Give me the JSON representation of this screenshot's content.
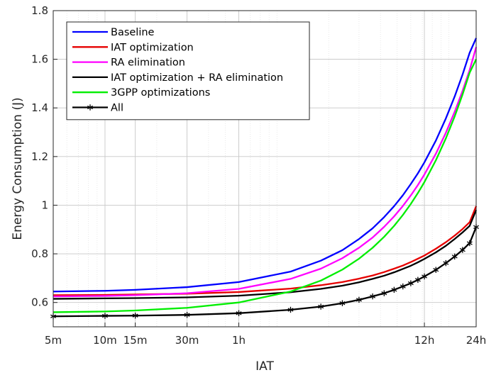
{
  "chart_data": {
    "type": "line",
    "xlabel": "IAT",
    "ylabel": "Energy Consumption (J)",
    "x_scale": "log",
    "x_unit": "minutes",
    "xlim": [
      5,
      1440
    ],
    "ylim": [
      0.5,
      1.8
    ],
    "x_ticks": [
      {
        "value": 5,
        "label": "5m"
      },
      {
        "value": 10,
        "label": "10m"
      },
      {
        "value": 15,
        "label": "15m"
      },
      {
        "value": 30,
        "label": "30m"
      },
      {
        "value": 60,
        "label": "1h"
      },
      {
        "value": 720,
        "label": "12h"
      },
      {
        "value": 1440,
        "label": "24h"
      }
    ],
    "y_ticks": [
      {
        "value": 0.6,
        "label": "0.6"
      },
      {
        "value": 0.8,
        "label": "0.8"
      },
      {
        "value": 1.0,
        "label": "1"
      },
      {
        "value": 1.2,
        "label": "1.2"
      },
      {
        "value": 1.4,
        "label": "1.4"
      },
      {
        "value": 1.6,
        "label": "1.6"
      },
      {
        "value": 1.8,
        "label": "1.8"
      }
    ],
    "grid": true,
    "legend_position": "top-left",
    "x": [
      5,
      10,
      15,
      30,
      60,
      120,
      180,
      240,
      300,
      360,
      420,
      480,
      540,
      600,
      660,
      720,
      840,
      960,
      1080,
      1200,
      1320,
      1440
    ],
    "series": [
      {
        "name": "Baseline",
        "color": "#0000ff",
        "marker": "none",
        "values": [
          0.645,
          0.648,
          0.652,
          0.663,
          0.684,
          0.727,
          0.772,
          0.815,
          0.861,
          0.905,
          0.951,
          0.996,
          1.041,
          1.087,
          1.131,
          1.176,
          1.266,
          1.357,
          1.447,
          1.537,
          1.627,
          1.687
        ]
      },
      {
        "name": "IAT optimization",
        "color": "#e60000",
        "marker": "none",
        "values": [
          0.63,
          0.631,
          0.633,
          0.636,
          0.643,
          0.657,
          0.671,
          0.684,
          0.698,
          0.711,
          0.725,
          0.739,
          0.752,
          0.766,
          0.78,
          0.793,
          0.821,
          0.848,
          0.875,
          0.902,
          0.93,
          0.996
        ]
      },
      {
        "name": "RA elimination",
        "color": "#ff00ff",
        "marker": "none",
        "values": [
          0.625,
          0.627,
          0.63,
          0.638,
          0.656,
          0.697,
          0.739,
          0.782,
          0.825,
          0.867,
          0.911,
          0.954,
          0.997,
          1.04,
          1.083,
          1.126,
          1.212,
          1.298,
          1.384,
          1.47,
          1.556,
          1.65
        ]
      },
      {
        "name": "IAT optimization + RA elimination",
        "color": "#000000",
        "marker": "none",
        "values": [
          0.615,
          0.617,
          0.618,
          0.621,
          0.628,
          0.642,
          0.656,
          0.669,
          0.683,
          0.697,
          0.71,
          0.724,
          0.738,
          0.751,
          0.765,
          0.779,
          0.806,
          0.833,
          0.861,
          0.888,
          0.915,
          0.98
        ]
      },
      {
        "name": "3GPP optimizations",
        "color": "#00ee00",
        "marker": "none",
        "values": [
          0.56,
          0.563,
          0.567,
          0.578,
          0.6,
          0.645,
          0.69,
          0.735,
          0.78,
          0.825,
          0.87,
          0.915,
          0.96,
          1.005,
          1.05,
          1.095,
          1.185,
          1.275,
          1.365,
          1.455,
          1.545,
          1.6
        ]
      },
      {
        "name": "All",
        "color": "#000000",
        "marker": "asterisk",
        "values": [
          0.543,
          0.545,
          0.546,
          0.549,
          0.556,
          0.57,
          0.583,
          0.597,
          0.611,
          0.625,
          0.638,
          0.652,
          0.666,
          0.679,
          0.693,
          0.707,
          0.734,
          0.762,
          0.789,
          0.816,
          0.844,
          0.91
        ]
      }
    ]
  }
}
